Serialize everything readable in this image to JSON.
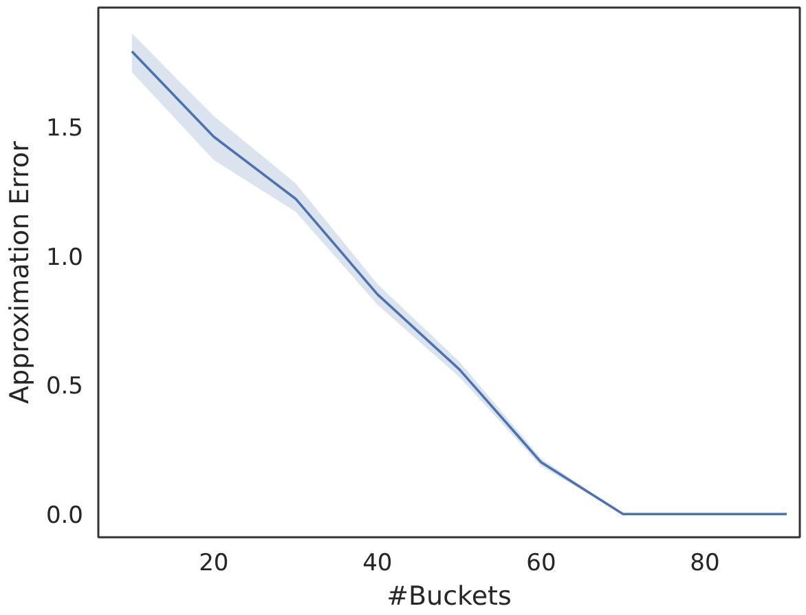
{
  "chart_data": {
    "type": "line",
    "xlabel": "#Buckets",
    "ylabel": "Approximation Error",
    "x": [
      10,
      20,
      30,
      40,
      50,
      60,
      70,
      80,
      90
    ],
    "series": [
      {
        "color": "#4c72b0",
        "values": [
          1.79,
          1.46,
          1.22,
          0.85,
          0.56,
          0.2,
          0,
          0,
          0
        ],
        "lower": [
          1.71,
          1.37,
          1.17,
          0.81,
          0.53,
          0.185,
          0,
          0,
          0
        ],
        "upper": [
          1.86,
          1.54,
          1.28,
          0.89,
          0.59,
          0.215,
          0,
          0,
          0
        ]
      }
    ],
    "xlim": [
      5.9,
      91.6
    ],
    "ylim": [
      -0.09,
      1.96
    ],
    "xticks": [
      20,
      40,
      60,
      80
    ],
    "yticks": [
      {
        "value": 0,
        "label": "0.0"
      },
      {
        "value": 0.5,
        "label": "0.5"
      },
      {
        "value": 1,
        "label": "1.0"
      },
      {
        "value": 1.5,
        "label": "1.5"
      }
    ],
    "grid": false,
    "marker": "none",
    "line_style": "solid"
  }
}
